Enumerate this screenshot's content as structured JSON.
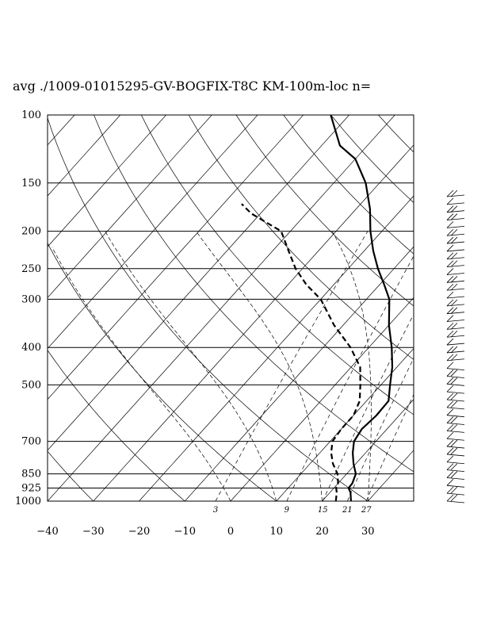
{
  "title": "avg ./1009-01015295-GV-BOGFIX-T8C KM-100m-loc n=",
  "chart_data": {
    "type": "line",
    "title": "avg ./1009-01015295-GV-BOGFIX-T8C KM-100m-loc n=",
    "xlabel": "",
    "ylabel": "",
    "pressure_ticks": [
      100,
      150,
      200,
      250,
      300,
      400,
      500,
      700,
      850,
      925,
      1000
    ],
    "pressure_labels": [
      "100",
      "150",
      "200",
      "250",
      "300",
      "400",
      "500",
      "700",
      "850",
      "925",
      "1000"
    ],
    "temperature_ticks": [
      -40,
      -30,
      -20,
      -10,
      0,
      10,
      20,
      30
    ],
    "temperature_labels": [
      "−40",
      "−30",
      "−20",
      "−10",
      "0",
      "10",
      "20",
      "30"
    ],
    "mixing_ratio_labels": [
      "3",
      "9",
      "15",
      "21",
      "27"
    ],
    "mixing_ratio_values": [
      3,
      9,
      15,
      21,
      27
    ],
    "xlim": [
      -40,
      40
    ],
    "ylim": [
      1000,
      100
    ],
    "log_pressure": true,
    "series": [
      {
        "style": "solid",
        "points": [
          [
            1000,
            26.3
          ],
          [
            950,
            24.5
          ],
          [
            925,
            23.2
          ],
          [
            900,
            23.1
          ],
          [
            850,
            22.0
          ],
          [
            800,
            19.5
          ],
          [
            750,
            17.2
          ],
          [
            700,
            15.2
          ],
          [
            650,
            14.5
          ],
          [
            600,
            15.0
          ],
          [
            550,
            14.8
          ],
          [
            500,
            12.0
          ],
          [
            450,
            9.0
          ],
          [
            400,
            5.0
          ],
          [
            350,
            0.0
          ],
          [
            300,
            -5.0
          ],
          [
            275,
            -9.0
          ],
          [
            250,
            -13.5
          ],
          [
            225,
            -18.0
          ],
          [
            200,
            -22.5
          ],
          [
            175,
            -27.0
          ],
          [
            150,
            -33.0
          ],
          [
            130,
            -40.0
          ],
          [
            120,
            -46.0
          ],
          [
            100,
            -54.0
          ]
        ]
      },
      {
        "style": "dashed",
        "points": [
          [
            1000,
            23.0
          ],
          [
            950,
            21.5
          ],
          [
            925,
            20.5
          ],
          [
            900,
            20.0
          ],
          [
            850,
            18.0
          ],
          [
            800,
            15.0
          ],
          [
            750,
            12.5
          ],
          [
            700,
            10.5
          ],
          [
            650,
            10.0
          ],
          [
            600,
            10.0
          ],
          [
            550,
            8.5
          ],
          [
            500,
            5.5
          ],
          [
            450,
            2.0
          ],
          [
            400,
            -4.0
          ],
          [
            350,
            -12.0
          ],
          [
            300,
            -20.0
          ],
          [
            275,
            -26.0
          ],
          [
            250,
            -31.5
          ],
          [
            225,
            -36.5
          ],
          [
            200,
            -42.0
          ],
          [
            180,
            -52.0
          ],
          [
            170,
            -56.0
          ]
        ]
      }
    ],
    "wind_barb_count": 40,
    "colors": {
      "line": "#000000",
      "background": "#ffffff"
    }
  }
}
